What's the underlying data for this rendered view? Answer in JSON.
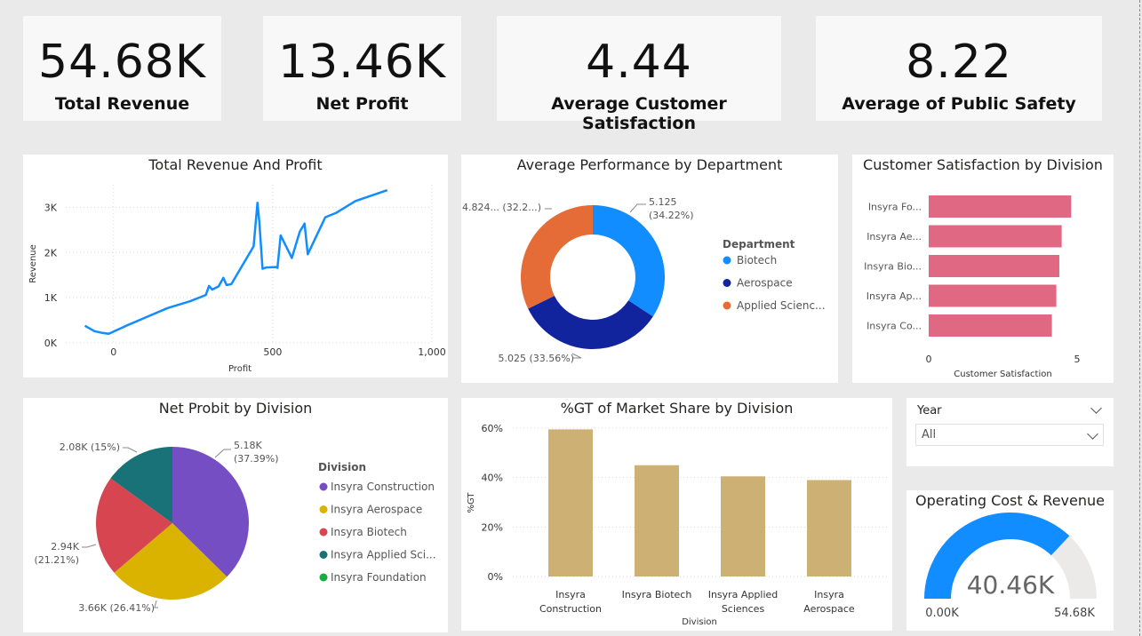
{
  "kpis": {
    "revenue": {
      "value": "54.68K",
      "label": "Total Revenue"
    },
    "profit": {
      "value": "13.46K",
      "label": "Net Profit"
    },
    "satisfaction": {
      "value": "4.44",
      "label": "Average Customer Satisfaction"
    },
    "safety": {
      "value": "8.22",
      "label": "Average of Public Safety"
    }
  },
  "slicer": {
    "label": "Year",
    "value": "All"
  },
  "colors": {
    "line": "#118dff",
    "bar_pink": "#e06882",
    "bar_gold": "#cdb073",
    "gauge": "#118dff",
    "gauge_bg": "#ebeae8"
  },
  "chart_data": [
    {
      "id": "revenue_profit",
      "type": "line",
      "title": "Total Revenue And Profit",
      "xlabel": "Profit",
      "ylabel": "Revenue",
      "xlim": [
        -150,
        1000
      ],
      "ylim": [
        0,
        3500
      ],
      "xticks": [
        "0",
        "500",
        "1,000"
      ],
      "yticks": [
        "0K",
        "1K",
        "2K",
        "3K"
      ],
      "grid": true,
      "points": [
        [
          -90,
          380
        ],
        [
          -60,
          260
        ],
        [
          -35,
          220
        ],
        [
          -15,
          200
        ],
        [
          40,
          380
        ],
        [
          100,
          560
        ],
        [
          170,
          770
        ],
        [
          240,
          920
        ],
        [
          290,
          1060
        ],
        [
          300,
          1260
        ],
        [
          310,
          1180
        ],
        [
          330,
          1250
        ],
        [
          345,
          1440
        ],
        [
          355,
          1280
        ],
        [
          370,
          1300
        ],
        [
          440,
          2140
        ],
        [
          452,
          3100
        ],
        [
          458,
          2680
        ],
        [
          468,
          1640
        ],
        [
          480,
          1670
        ],
        [
          510,
          1680
        ],
        [
          515,
          1660
        ],
        [
          525,
          2380
        ],
        [
          560,
          1880
        ],
        [
          585,
          2460
        ],
        [
          600,
          2640
        ],
        [
          610,
          1960
        ],
        [
          665,
          2780
        ],
        [
          700,
          2880
        ],
        [
          760,
          3140
        ],
        [
          860,
          3380
        ]
      ]
    },
    {
      "id": "performance",
      "type": "pie",
      "title": "Average Performance by Department",
      "legend_title": "Department",
      "slices": [
        {
          "name": "Biotech",
          "value": 5.125,
          "label": "5.125\n(34.22%)",
          "color": "#118dff"
        },
        {
          "name": "Aerospace",
          "value": 5.025,
          "label": "5.025 (33.56%)",
          "color": "#12239e"
        },
        {
          "name": "Applied Scienc...",
          "value": 4.824,
          "label": "4.824... (32.2...)",
          "color": "#e66c37"
        }
      ]
    },
    {
      "id": "satisfaction",
      "type": "bar",
      "orientation": "horizontal",
      "title": "Customer Satisfaction by Division",
      "xlabel": "Customer Satisfaction",
      "xlim": [
        0,
        5
      ],
      "xticks": [
        "0",
        "5"
      ],
      "categories": [
        "Insyra Fo...",
        "Insyra Ae...",
        "Insyra Bio...",
        "Insyra Ap...",
        "Insyra Co..."
      ],
      "values": [
        4.8,
        4.48,
        4.4,
        4.3,
        4.15
      ]
    },
    {
      "id": "net_profit",
      "type": "pie",
      "title": "Net Probit by Division",
      "legend_title": "Division",
      "slices": [
        {
          "name": "Insyra Construction",
          "value": 5.18,
          "label": "5.18K\n(37.39%)",
          "color": "#744ec2"
        },
        {
          "name": "Insyra Aerospace",
          "value": 3.66,
          "label": "3.66K (26.41%)",
          "color": "#d9b300"
        },
        {
          "name": "Insyra Biotech",
          "value": 2.94,
          "label": "2.94K\n(21.21%)",
          "color": "#d64550"
        },
        {
          "name": "Insyra Applied Sci...",
          "value": 2.08,
          "label": "2.08K (15%)",
          "color": "#197278"
        },
        {
          "name": "Insyra Foundation",
          "value": 0,
          "label": "",
          "color": "#1aab40"
        }
      ]
    },
    {
      "id": "market_share",
      "type": "bar",
      "title": "%GT of Market Share by Division",
      "xlabel": "Division",
      "ylabel": "%GT",
      "ylim": [
        0,
        0.6
      ],
      "yticks": [
        "0%",
        "20%",
        "40%",
        "60%"
      ],
      "categories": [
        "Insyra\nConstruction",
        "Insyra Biotech",
        "Insyra Applied\nSciences",
        "Insyra\nAerospace"
      ],
      "values": [
        0.595,
        0.45,
        0.405,
        0.39
      ]
    },
    {
      "id": "gauge",
      "type": "gauge",
      "title": "Operating Cost & Revenue",
      "value": 40.46,
      "value_label": "40.46K",
      "min_label": "0.00K",
      "max_label": "54.68K",
      "min": 0,
      "max": 54.68
    }
  ]
}
